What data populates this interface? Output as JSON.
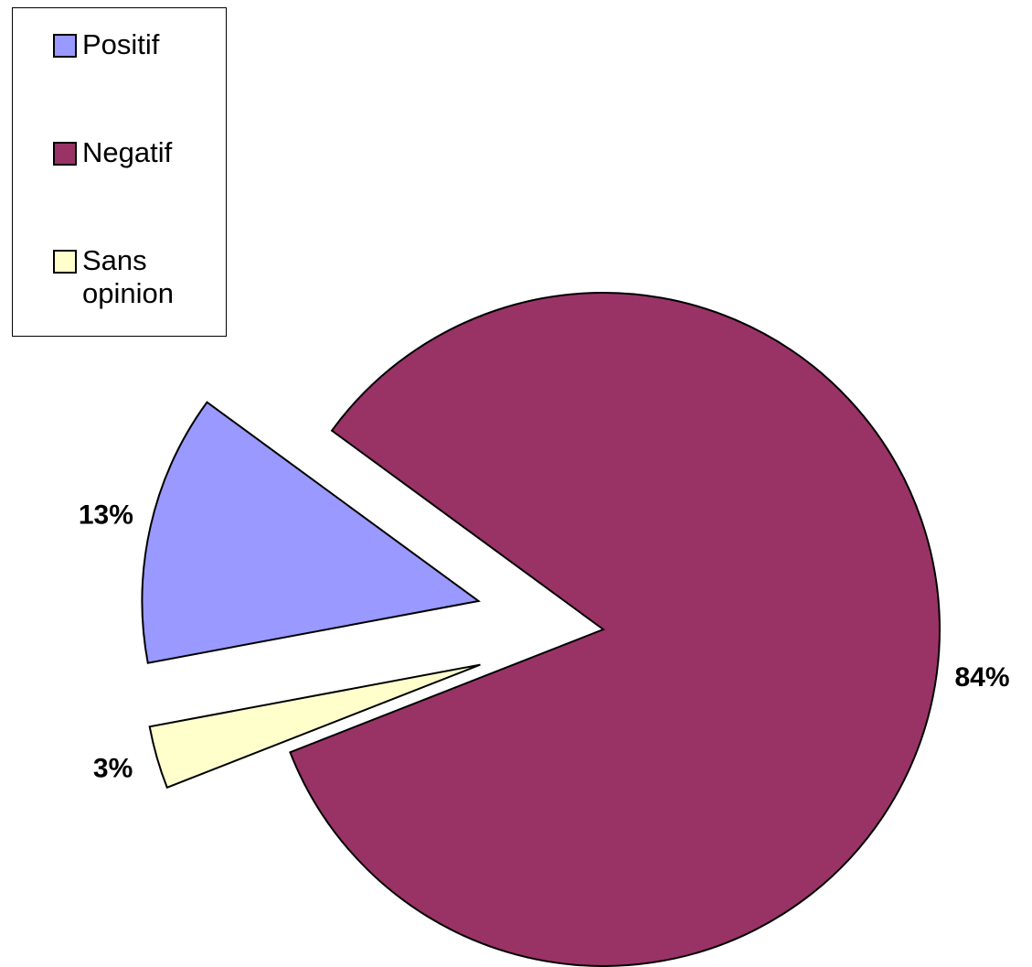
{
  "chart_data": {
    "type": "pie",
    "categories": [
      "Positif",
      "Negatif",
      "Sans opinion"
    ],
    "values": [
      13,
      84,
      3
    ],
    "value_labels": [
      "13%",
      "84%",
      "3%"
    ],
    "colors": [
      "#9999ff",
      "#993366",
      "#ffffcc"
    ],
    "legend": "top-left"
  }
}
